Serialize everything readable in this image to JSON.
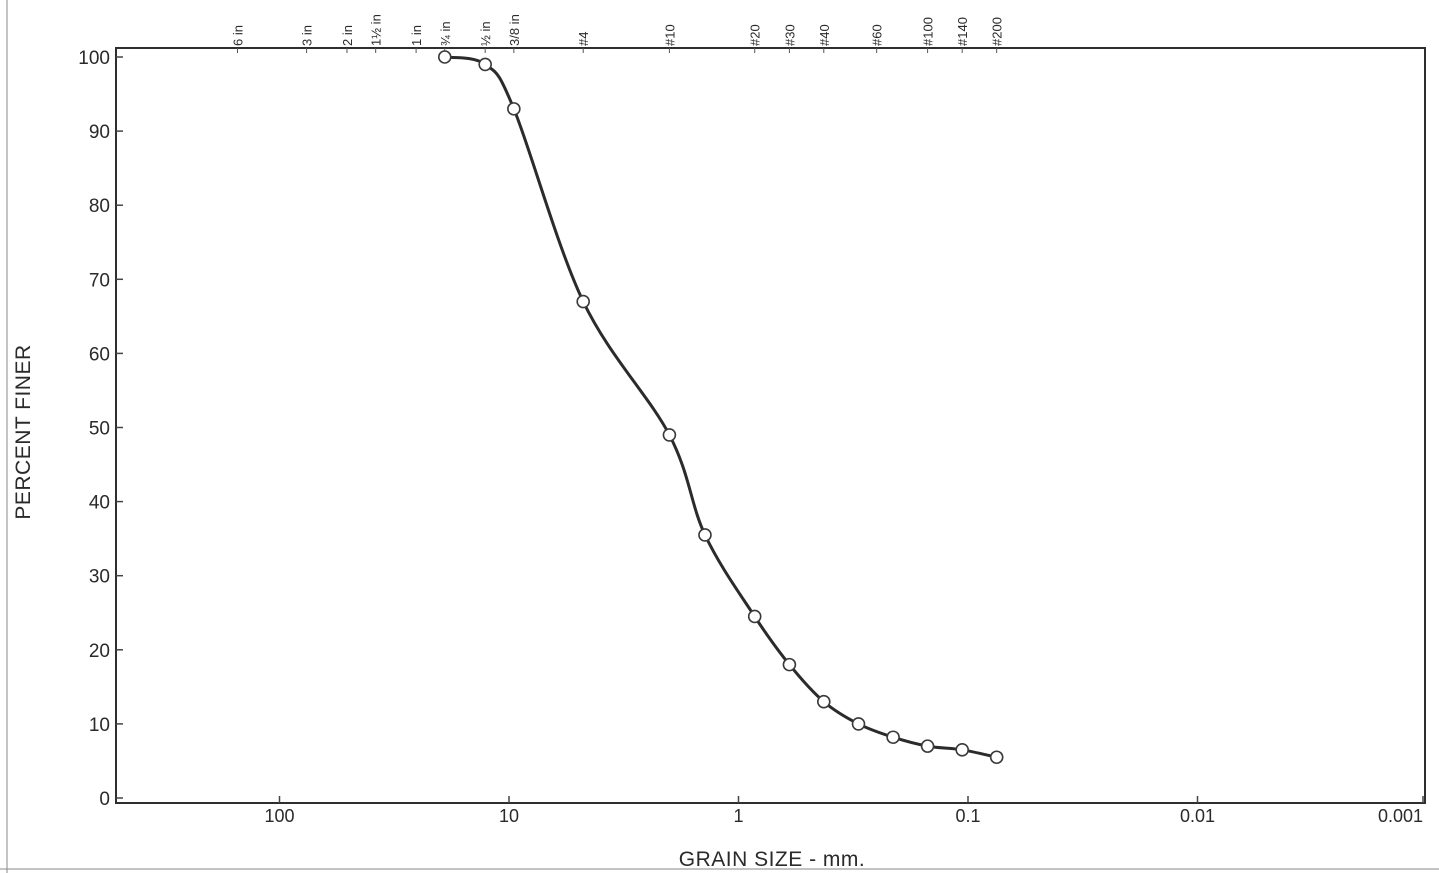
{
  "chart_data": {
    "type": "line",
    "title": "",
    "xlabel": "GRAIN SIZE - mm.",
    "ylabel": "PERCENT FINER",
    "x_scale": "log",
    "x_reversed": true,
    "xlim": [
      500,
      0.001
    ],
    "ylim": [
      0,
      100
    ],
    "grid": false,
    "x_ticks": [
      {
        "value": 100,
        "label": "100"
      },
      {
        "value": 10,
        "label": "10"
      },
      {
        "value": 1,
        "label": "1"
      },
      {
        "value": 0.1,
        "label": "0.1"
      },
      {
        "value": 0.01,
        "label": "0.01"
      },
      {
        "value": 0.001,
        "label": "0.001"
      }
    ],
    "y_ticks": [
      {
        "value": 0,
        "label": "0"
      },
      {
        "value": 10,
        "label": "10"
      },
      {
        "value": 20,
        "label": "20"
      },
      {
        "value": 30,
        "label": "30"
      },
      {
        "value": 40,
        "label": "40"
      },
      {
        "value": 50,
        "label": "50"
      },
      {
        "value": 60,
        "label": "60"
      },
      {
        "value": 70,
        "label": "70"
      },
      {
        "value": 80,
        "label": "80"
      },
      {
        "value": 90,
        "label": "90"
      },
      {
        "value": 100,
        "label": "100"
      }
    ],
    "sieve_labels": [
      {
        "label": "6 in",
        "size_mm": 152.4
      },
      {
        "label": "3 in",
        "size_mm": 76.2
      },
      {
        "label": "2 in",
        "size_mm": 50.8
      },
      {
        "label": "1½ in",
        "size_mm": 38.1
      },
      {
        "label": "1 in",
        "size_mm": 25.4
      },
      {
        "label": "¾ in",
        "size_mm": 19.05
      },
      {
        "label": "½ in",
        "size_mm": 12.7
      },
      {
        "label": "3/8 in",
        "size_mm": 9.525
      },
      {
        "label": "#4",
        "size_mm": 4.75
      },
      {
        "label": "#10",
        "size_mm": 2.0
      },
      {
        "label": "#20",
        "size_mm": 0.85
      },
      {
        "label": "#30",
        "size_mm": 0.6
      },
      {
        "label": "#40",
        "size_mm": 0.425
      },
      {
        "label": "#60",
        "size_mm": 0.25
      },
      {
        "label": "#100",
        "size_mm": 0.15
      },
      {
        "label": "#140",
        "size_mm": 0.106
      },
      {
        "label": "#200",
        "size_mm": 0.075
      }
    ],
    "series": [
      {
        "color": "#2b2b2b",
        "points": [
          {
            "x": 19.05,
            "y": 100
          },
          {
            "x": 12.7,
            "y": 99
          },
          {
            "x": 9.525,
            "y": 93
          },
          {
            "x": 4.75,
            "y": 67
          },
          {
            "x": 2.0,
            "y": 49
          },
          {
            "x": 1.4,
            "y": 35.5
          },
          {
            "x": 0.85,
            "y": 24.5
          },
          {
            "x": 0.6,
            "y": 18
          },
          {
            "x": 0.425,
            "y": 13
          },
          {
            "x": 0.3,
            "y": 10
          },
          {
            "x": 0.212,
            "y": 8.2
          },
          {
            "x": 0.15,
            "y": 7
          },
          {
            "x": 0.106,
            "y": 6.5
          },
          {
            "x": 0.075,
            "y": 5.5
          }
        ]
      }
    ]
  }
}
